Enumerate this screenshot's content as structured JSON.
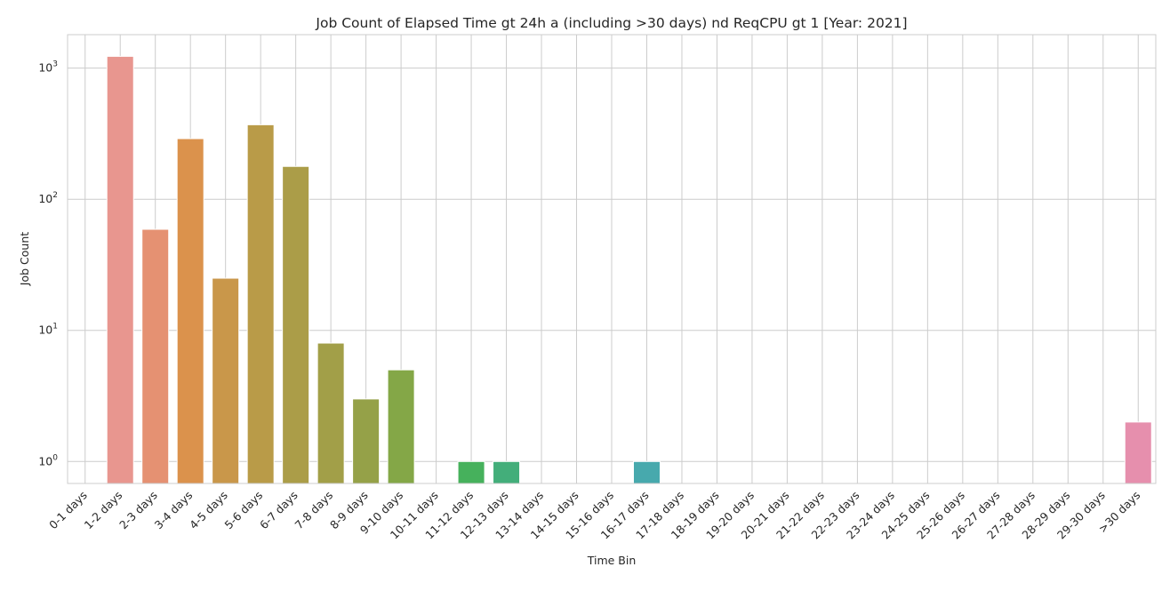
{
  "chart_data": {
    "type": "bar",
    "title": "Job Count of Elapsed Time gt 24h a (including >30 days) nd ReqCPU gt 1 [Year: 2021]",
    "xlabel": "Time Bin",
    "ylabel": "Job Count",
    "yscale": "log",
    "ylim": [
      0.68,
      1800
    ],
    "yticks": [
      1,
      10,
      100,
      1000
    ],
    "ytick_labels": [
      {
        "base": "10",
        "exp": "0"
      },
      {
        "base": "10",
        "exp": "1"
      },
      {
        "base": "10",
        "exp": "2"
      },
      {
        "base": "10",
        "exp": "3"
      }
    ],
    "grid": true,
    "categories": [
      "0-1 days",
      "1-2 days",
      "2-3 days",
      "3-4 days",
      "4-5 days",
      "5-6 days",
      "6-7 days",
      "7-8 days",
      "8-9 days",
      "9-10 days",
      "10-11 days",
      "11-12 days",
      "12-13 days",
      "13-14 days",
      "14-15 days",
      "15-16 days",
      "16-17 days",
      "17-18 days",
      "18-19 days",
      "19-20 days",
      "20-21 days",
      "21-22 days",
      "22-23 days",
      "23-24 days",
      "24-25 days",
      "25-26 days",
      "26-27 days",
      "27-28 days",
      "28-29 days",
      "29-30 days",
      ">30 days"
    ],
    "values": [
      0,
      1230,
      59,
      290,
      25,
      370,
      178,
      8,
      3,
      5,
      0,
      1,
      1,
      0,
      0,
      0,
      1,
      0,
      0,
      0,
      0,
      0,
      0,
      0,
      0,
      0,
      0,
      0,
      0,
      0,
      2
    ],
    "colors": [
      "#e8968f",
      "#e8968f",
      "#e59172",
      "#db924c",
      "#c9974a",
      "#b99b48",
      "#ab9d48",
      "#a29f48",
      "#95a148",
      "#84a747",
      "#4db057",
      "#46b15c",
      "#43ae7a",
      "#42ab8d",
      "#42aa96",
      "#44a9a2",
      "#47a9ad",
      "#4aa9b5",
      "#4ea8bd",
      "#53a6c6",
      "#5ba4d0",
      "#6aa0d9",
      "#7c9ae0",
      "#8f94e4",
      "#a38de8",
      "#b787e6",
      "#c981e0",
      "#d87dd5",
      "#e17dc6",
      "#e684b5",
      "#e68fad"
    ]
  }
}
